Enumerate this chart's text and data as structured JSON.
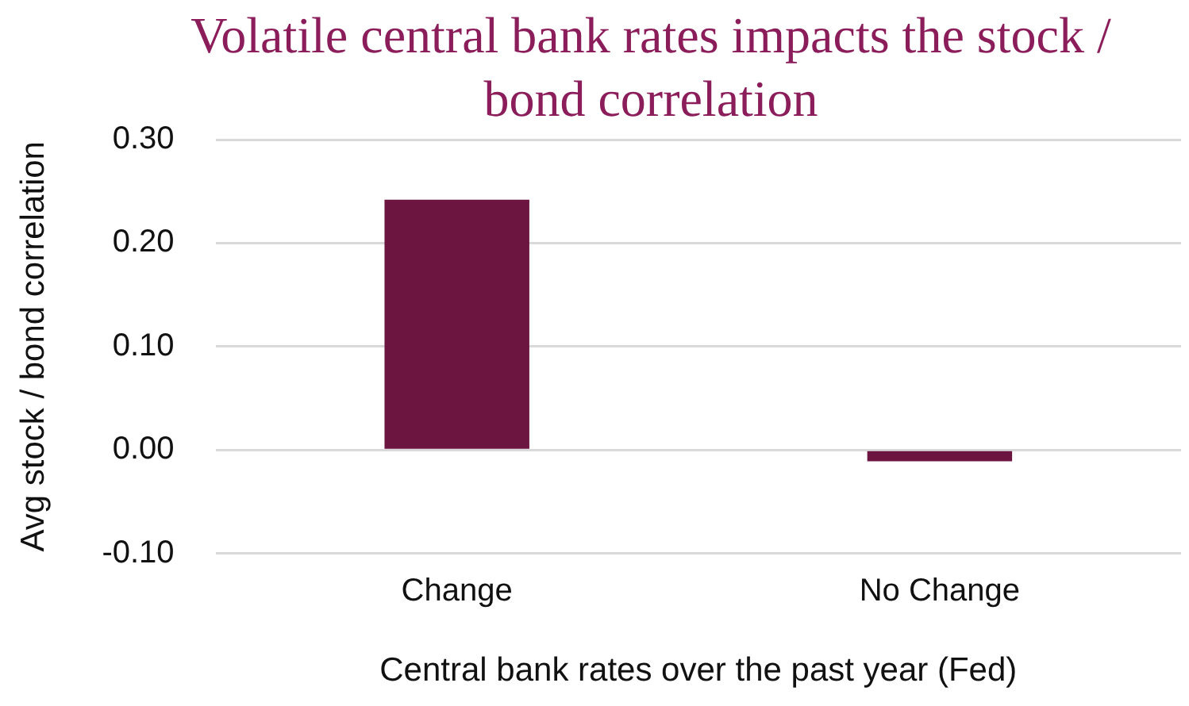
{
  "chart_data": {
    "type": "bar",
    "title": "Volatile central bank rates impacts the stock / bond correlation",
    "xlabel": "Central bank rates over the past year (Fed)",
    "ylabel": "Avg stock / bond correlation",
    "categories": [
      "Change",
      "No Change"
    ],
    "values": [
      0.242,
      -0.011
    ],
    "color": "#6b1540",
    "ylim": [
      -0.1,
      0.3
    ],
    "yticks": [
      {
        "value": -0.1,
        "label": "-0.10"
      },
      {
        "value": 0,
        "label": "0.00"
      },
      {
        "value": 0.1,
        "label": "0.10"
      },
      {
        "value": 0.2,
        "label": "0.20"
      },
      {
        "value": 0.3,
        "label": "0.30"
      }
    ],
    "grid": "y"
  }
}
